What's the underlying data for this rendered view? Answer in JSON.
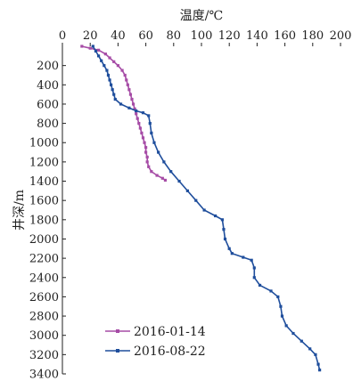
{
  "chart_data": {
    "type": "line",
    "orientation": "depth-profile",
    "xlabel": "温度/℃",
    "ylabel": "井深/m",
    "x_axis_position": "top",
    "y_axis_inverted": true,
    "xlim": [
      0,
      200
    ],
    "ylim": [
      0,
      3400
    ],
    "x_ticks": [
      "0",
      "20",
      "40",
      "60",
      "80",
      "100",
      "120",
      "140",
      "160",
      "180",
      "200"
    ],
    "y_ticks": [
      "200",
      "400",
      "600",
      "800",
      "1000",
      "1200",
      "1400",
      "1600",
      "1800",
      "2000",
      "2200",
      "2400",
      "2600",
      "2800",
      "3000",
      "3200",
      "3400"
    ],
    "grid": false,
    "legend_position": "bottom-left",
    "series": [
      {
        "name": "2016-01-14",
        "color": "#a64ca6",
        "marker": "square",
        "points": [
          [
            14,
            0
          ],
          [
            20,
            20
          ],
          [
            26,
            40
          ],
          [
            31,
            80
          ],
          [
            34,
            120
          ],
          [
            37,
            160
          ],
          [
            40,
            200
          ],
          [
            43,
            250
          ],
          [
            45,
            300
          ],
          [
            46,
            350
          ],
          [
            47,
            400
          ],
          [
            48,
            450
          ],
          [
            49,
            500
          ],
          [
            50,
            550
          ],
          [
            51,
            600
          ],
          [
            52,
            650
          ],
          [
            53,
            700
          ],
          [
            54,
            750
          ],
          [
            55,
            800
          ],
          [
            56,
            850
          ],
          [
            57,
            900
          ],
          [
            58,
            950
          ],
          [
            59,
            1000
          ],
          [
            60,
            1050
          ],
          [
            60,
            1100
          ],
          [
            61,
            1150
          ],
          [
            61,
            1200
          ],
          [
            62,
            1250
          ],
          [
            64,
            1300
          ],
          [
            68,
            1340
          ],
          [
            72,
            1370
          ],
          [
            74,
            1390
          ]
        ]
      },
      {
        "name": "2016-08-22",
        "color": "#1f4e9c",
        "marker": "square",
        "points": [
          [
            22,
            0
          ],
          [
            24,
            50
          ],
          [
            26,
            100
          ],
          [
            28,
            150
          ],
          [
            30,
            200
          ],
          [
            32,
            250
          ],
          [
            33,
            300
          ],
          [
            34,
            350
          ],
          [
            35,
            400
          ],
          [
            36,
            450
          ],
          [
            37,
            500
          ],
          [
            38,
            550
          ],
          [
            42,
            600
          ],
          [
            48,
            640
          ],
          [
            53,
            670
          ],
          [
            58,
            690
          ],
          [
            62,
            720
          ],
          [
            63,
            800
          ],
          [
            64,
            900
          ],
          [
            66,
            1000
          ],
          [
            69,
            1100
          ],
          [
            73,
            1200
          ],
          [
            78,
            1300
          ],
          [
            84,
            1400
          ],
          [
            90,
            1500
          ],
          [
            96,
            1600
          ],
          [
            102,
            1700
          ],
          [
            110,
            1760
          ],
          [
            115,
            1800
          ],
          [
            116,
            1900
          ],
          [
            117,
            2000
          ],
          [
            120,
            2100
          ],
          [
            122,
            2150
          ],
          [
            130,
            2190
          ],
          [
            136,
            2220
          ],
          [
            138,
            2300
          ],
          [
            138,
            2400
          ],
          [
            142,
            2480
          ],
          [
            150,
            2540
          ],
          [
            155,
            2600
          ],
          [
            157,
            2700
          ],
          [
            158,
            2800
          ],
          [
            161,
            2900
          ],
          [
            166,
            2980
          ],
          [
            172,
            3060
          ],
          [
            178,
            3140
          ],
          [
            182,
            3200
          ],
          [
            184,
            3300
          ],
          [
            185,
            3360
          ]
        ]
      }
    ]
  }
}
